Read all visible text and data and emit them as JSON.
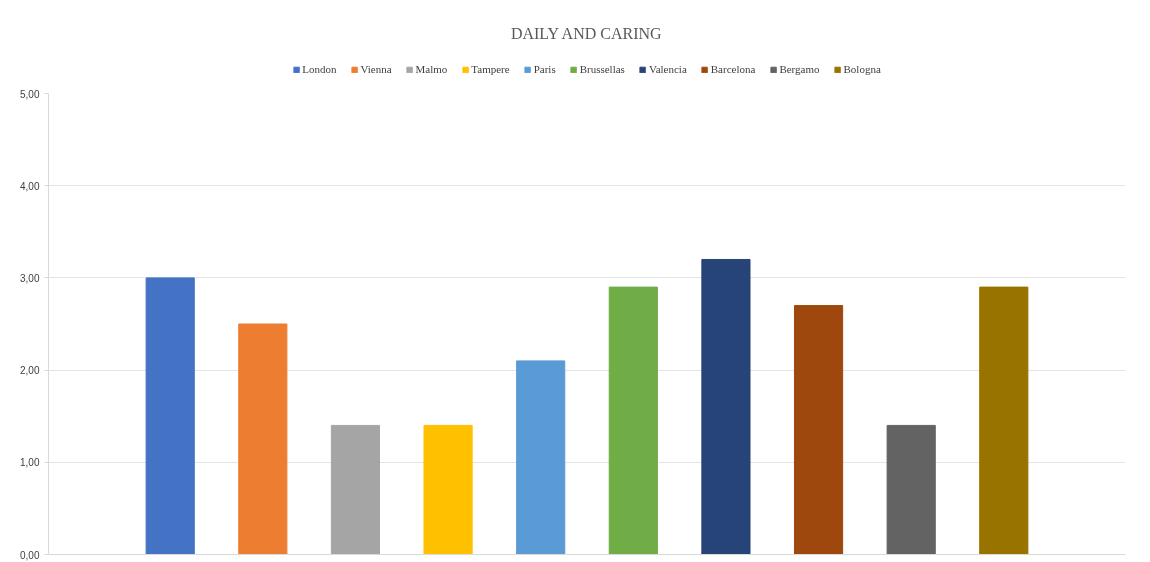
{
  "chart_data": {
    "type": "bar",
    "title": "DAILY AND CARING",
    "categories": [
      null
    ],
    "series": [
      {
        "name": "London",
        "color": "#4472c4",
        "values": [
          3.0
        ]
      },
      {
        "name": "Vienna",
        "color": "#ed7d31",
        "values": [
          2.5
        ]
      },
      {
        "name": "Malmo",
        "color": "#a5a5a5",
        "values": [
          1.4
        ]
      },
      {
        "name": "Tampere",
        "color": "#ffc000",
        "values": [
          1.4
        ]
      },
      {
        "name": "Paris",
        "color": "#5b9bd5",
        "values": [
          2.1
        ]
      },
      {
        "name": "Brussellas",
        "color": "#70ad47",
        "values": [
          2.9
        ]
      },
      {
        "name": "Valencia",
        "color": "#264478",
        "values": [
          3.2
        ]
      },
      {
        "name": "Barcelona",
        "color": "#9e480e",
        "values": [
          2.7
        ]
      },
      {
        "name": "Bergamo",
        "color": "#636363",
        "values": [
          1.4
        ]
      },
      {
        "name": "Bologna",
        "color": "#997300",
        "values": [
          2.9
        ]
      }
    ],
    "ylim": [
      0,
      5
    ],
    "yticks": [
      {
        "value": 0,
        "label": "0,00"
      },
      {
        "value": 1,
        "label": "1,00"
      },
      {
        "value": 2,
        "label": "2,00"
      },
      {
        "value": 3,
        "label": "3,00"
      },
      {
        "value": 4,
        "label": "4,00"
      },
      {
        "value": 5,
        "label": "5,00"
      }
    ],
    "grid": "y",
    "legend": "top"
  }
}
